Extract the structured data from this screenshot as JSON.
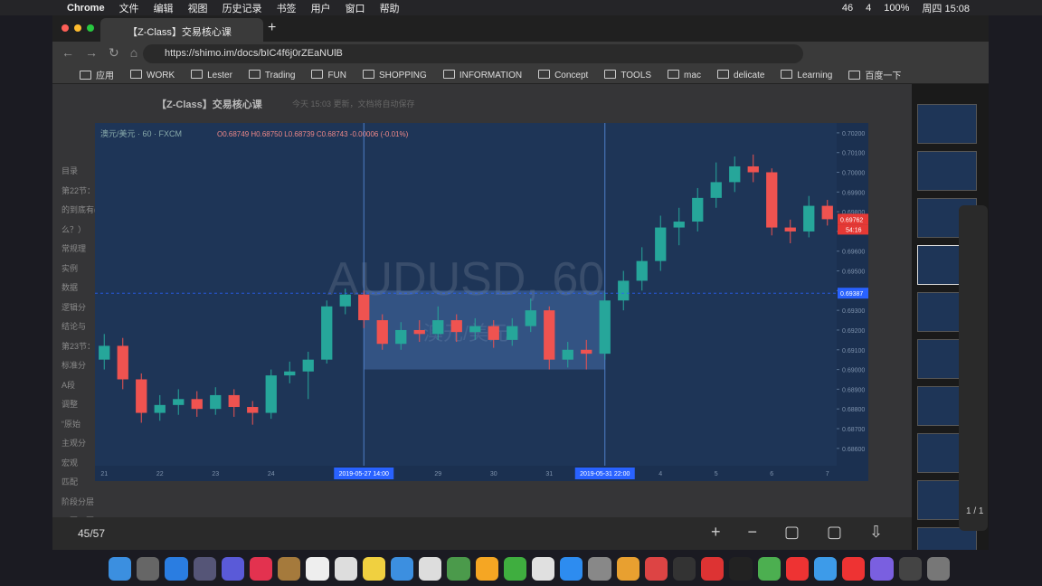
{
  "menubar": {
    "app": "Chrome",
    "items": [
      "文件",
      "编辑",
      "视图",
      "历史记录",
      "书签",
      "用户",
      "窗口",
      "帮助"
    ],
    "status": [
      "46",
      "4",
      "100%",
      "周四 15:08"
    ]
  },
  "browser": {
    "tab_title": "【Z-Class】交易核心课",
    "url": "https://shimo.im/docs/bIC4f6j0rZEaNUlB",
    "bookmarks": [
      "应用",
      "WORK",
      "Lester",
      "Trading",
      "FUN",
      "SHOPPING",
      "INFORMATION",
      "Concept",
      "TOOLS",
      "mac",
      "delicate",
      "Learning",
      "百度一下"
    ]
  },
  "doc": {
    "title": "【Z-Class】交易核心课",
    "status": "今天 15:03 更新，文档将自动保存",
    "sidebar": [
      "目录",
      "第22节：",
      "的到底有(",
      "么？）",
      "常规理",
      "实例",
      "数据",
      "逻辑分",
      "结论与",
      "第23节：",
      "标准分",
      "A段",
      "调整",
      "“原始",
      "主观分",
      "宏观",
      "匹配",
      "阶段分层",
      "四因四圈"
    ]
  },
  "viewer": {
    "counter": "45/57",
    "panel_page": "1 / 1"
  },
  "chart_data": {
    "type": "candlestick",
    "symbol": "澳元/美元 · 60 · FXCM",
    "ohlc_text": "O0.68749 H0.68750 L0.68739 C0.68743 -0.00006 (-0.01%)",
    "watermark": "AUDUSD, 60",
    "watermark_sub": "澳元/美元",
    "up_color": "#26a69a",
    "down_color": "#ef5350",
    "categories": [
      "21",
      null,
      null,
      "22",
      null,
      null,
      "23",
      null,
      null,
      "24",
      null,
      null,
      null,
      null,
      "2019-05-27  14:00",
      null,
      null,
      null,
      "29",
      null,
      null,
      "30",
      null,
      null,
      "31",
      null,
      null,
      "2019-05-31  22:00",
      null,
      null,
      "4",
      null,
      null,
      "5",
      null,
      null,
      "6",
      null,
      null,
      "7"
    ],
    "ohlc": [
      [
        0.6905,
        0.6918,
        0.69,
        0.6912
      ],
      [
        0.6912,
        0.6916,
        0.689,
        0.6895
      ],
      [
        0.6895,
        0.6898,
        0.6873,
        0.6878
      ],
      [
        0.6878,
        0.6887,
        0.6874,
        0.6882
      ],
      [
        0.6882,
        0.689,
        0.6877,
        0.6885
      ],
      [
        0.6885,
        0.6889,
        0.6876,
        0.688
      ],
      [
        0.688,
        0.6891,
        0.6877,
        0.6887
      ],
      [
        0.6887,
        0.689,
        0.6876,
        0.6881
      ],
      [
        0.6881,
        0.6884,
        0.6872,
        0.6878
      ],
      [
        0.6878,
        0.69,
        0.6875,
        0.6897
      ],
      [
        0.6897,
        0.6904,
        0.6893,
        0.6899
      ],
      [
        0.6899,
        0.6909,
        0.6885,
        0.6905
      ],
      [
        0.6905,
        0.6935,
        0.6903,
        0.6932
      ],
      [
        0.6932,
        0.6941,
        0.6928,
        0.6938
      ],
      [
        0.6938,
        0.694,
        0.6921,
        0.6925
      ],
      [
        0.6925,
        0.6928,
        0.691,
        0.6913
      ],
      [
        0.6913,
        0.6924,
        0.691,
        0.692
      ],
      [
        0.692,
        0.6925,
        0.6914,
        0.6918
      ],
      [
        0.6918,
        0.6932,
        0.6915,
        0.6925
      ],
      [
        0.6925,
        0.6928,
        0.6914,
        0.6919
      ],
      [
        0.6919,
        0.6926,
        0.6915,
        0.6922
      ],
      [
        0.6922,
        0.6925,
        0.6911,
        0.6915
      ],
      [
        0.6915,
        0.6926,
        0.6912,
        0.6922
      ],
      [
        0.6922,
        0.6936,
        0.6919,
        0.693
      ],
      [
        0.693,
        0.6932,
        0.69,
        0.6905
      ],
      [
        0.6905,
        0.6914,
        0.6901,
        0.691
      ],
      [
        0.691,
        0.6915,
        0.69,
        0.6908
      ],
      [
        0.6908,
        0.6939,
        0.6905,
        0.6935
      ],
      [
        0.6935,
        0.695,
        0.693,
        0.6945
      ],
      [
        0.6945,
        0.6962,
        0.694,
        0.6955
      ],
      [
        0.6955,
        0.6978,
        0.695,
        0.6972
      ],
      [
        0.6972,
        0.6982,
        0.6963,
        0.6975
      ],
      [
        0.6975,
        0.6992,
        0.697,
        0.6987
      ],
      [
        0.6987,
        0.7005,
        0.6982,
        0.6995
      ],
      [
        0.6995,
        0.7008,
        0.699,
        0.7003
      ],
      [
        0.7003,
        0.7009,
        0.6995,
        0.7
      ],
      [
        0.7,
        0.7002,
        0.6968,
        0.6972
      ],
      [
        0.6972,
        0.6976,
        0.6964,
        0.697
      ],
      [
        0.697,
        0.6988,
        0.6967,
        0.6983
      ],
      [
        0.6983,
        0.6986,
        0.6973,
        0.69762
      ]
    ],
    "ylim": [
      0.68512,
      0.7025
    ],
    "yticks": [
      {
        "value": 0.686,
        "label": "0.68600"
      },
      {
        "value": 0.687,
        "label": "0.68700"
      },
      {
        "value": 0.688,
        "label": "0.68800"
      },
      {
        "value": 0.689,
        "label": "0.68900"
      },
      {
        "value": 0.69,
        "label": "0.69000"
      },
      {
        "value": 0.691,
        "label": "0.69100"
      },
      {
        "value": 0.692,
        "label": "0.69200"
      },
      {
        "value": 0.693,
        "label": "0.69300"
      },
      {
        "value": 0.694,
        "label": "0.69400"
      },
      {
        "value": 0.695,
        "label": "0.69500"
      },
      {
        "value": 0.696,
        "label": "0.69600"
      },
      {
        "value": 0.697,
        "label": "0.69700"
      },
      {
        "value": 0.698,
        "label": "0.69800"
      },
      {
        "value": 0.699,
        "label": "0.69900"
      },
      {
        "value": 0.7,
        "label": "0.70000"
      },
      {
        "value": 0.701,
        "label": "0.70100"
      },
      {
        "value": 0.702,
        "label": "0.70200"
      }
    ],
    "markers": [
      {
        "value": 0.69762,
        "label": "0.69762",
        "color": "#e53935"
      },
      {
        "value": 0.69387,
        "label": "0.69387",
        "color": "#2962ff",
        "dashed": true
      }
    ],
    "countdown": "54:16"
  }
}
